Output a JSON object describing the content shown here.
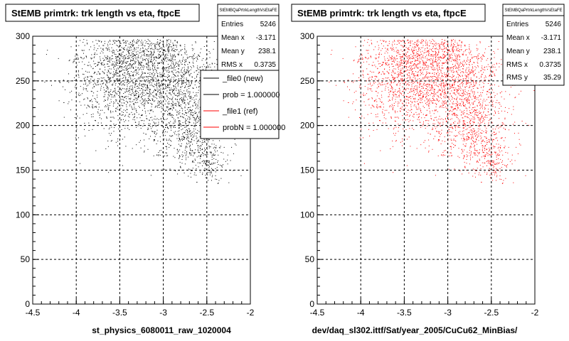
{
  "chart_data": [
    {
      "type": "scatter",
      "title": "StEMB primtrk: trk length vs eta, ftpcE",
      "xlabel": "st_physics_6080011_raw_1020004",
      "ylabel": "",
      "xlim": [
        -4.5,
        -2
      ],
      "ylim": [
        0,
        300
      ],
      "x_ticks": [
        "-4.5",
        "-4",
        "-3.5",
        "-3",
        "-2.5",
        "-2"
      ],
      "y_ticks": [
        "0",
        "50",
        "100",
        "150",
        "200",
        "250",
        "300"
      ],
      "grid": true,
      "marker_color": "#000000",
      "stats": {
        "name": "StEMBQaPrtrkLengthVsEtaFE",
        "rows": [
          {
            "label": "Entries",
            "value": "5246"
          },
          {
            "label": "Mean x",
            "value": "-3.171"
          },
          {
            "label": "Mean y",
            "value": "238.1"
          },
          {
            "label": "RMS x",
            "value": "0.3735"
          }
        ]
      },
      "legend": {
        "placement": "right",
        "entries": [
          {
            "label": "_file0 (new)",
            "color": "#000000"
          },
          {
            "label": "prob = 1.000000",
            "color": "#000000"
          },
          {
            "label": "_file1 (ref)",
            "color": "#ff0000"
          },
          {
            "label": "probN = 1.000000",
            "color": "#ff0000"
          }
        ]
      },
      "clusters": [
        {
          "cx": -3.05,
          "cy": 255,
          "sx": 0.35,
          "sy": 32,
          "n": 1800
        },
        {
          "cx": -3.6,
          "cy": 255,
          "sx": 0.25,
          "sy": 32,
          "n": 700
        },
        {
          "cx": -2.75,
          "cy": 200,
          "sx": 0.2,
          "sy": 28,
          "n": 500
        },
        {
          "cx": -2.5,
          "cy": 175,
          "sx": 0.12,
          "sy": 18,
          "n": 200
        }
      ]
    },
    {
      "type": "scatter",
      "title": "StEMB primtrk: trk length vs eta, ftpcE",
      "xlabel": "dev/daq_sl302.ittf/Sat/year_2005/CuCu62_MinBias/",
      "ylabel": "",
      "xlim": [
        -4.5,
        -2
      ],
      "ylim": [
        0,
        300
      ],
      "x_ticks": [
        "-4.5",
        "-4",
        "-3.5",
        "-3",
        "-2.5",
        "-2"
      ],
      "y_ticks": [
        "0",
        "50",
        "100",
        "150",
        "200",
        "250",
        "300"
      ],
      "grid": true,
      "marker_color": "#ff0000",
      "stats": {
        "name": "StEMBQaPrtrkLengthVsEtaFE",
        "rows": [
          {
            "label": "Entries",
            "value": "5246"
          },
          {
            "label": "Mean x",
            "value": "-3.171"
          },
          {
            "label": "Mean y",
            "value": "238.1"
          },
          {
            "label": "RMS x",
            "value": "0.3735"
          },
          {
            "label": "RMS y",
            "value": "35.29"
          }
        ]
      },
      "clusters": [
        {
          "cx": -3.05,
          "cy": 255,
          "sx": 0.35,
          "sy": 32,
          "n": 1800
        },
        {
          "cx": -3.6,
          "cy": 255,
          "sx": 0.25,
          "sy": 32,
          "n": 700
        },
        {
          "cx": -2.75,
          "cy": 200,
          "sx": 0.2,
          "sy": 28,
          "n": 500
        },
        {
          "cx": -2.5,
          "cy": 175,
          "sx": 0.12,
          "sy": 18,
          "n": 200
        }
      ]
    }
  ]
}
